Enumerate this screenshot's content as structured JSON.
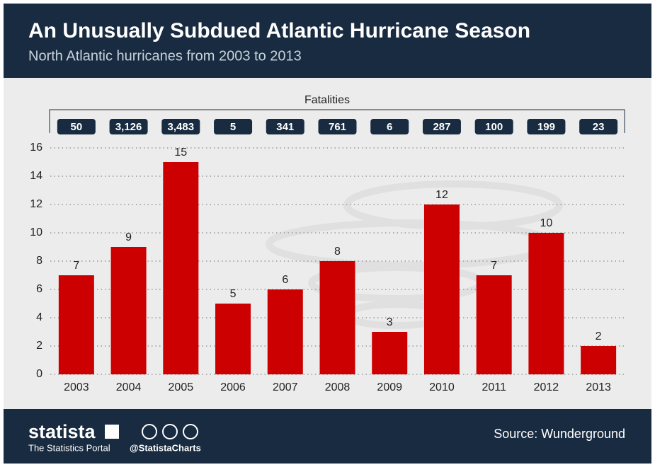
{
  "chart_data": {
    "type": "bar",
    "title": "An Unusually Subdued Atlantic Hurricane Season",
    "subtitle": "North Atlantic hurricanes from 2003 to 2013",
    "categories": [
      "2003",
      "2004",
      "2005",
      "2006",
      "2007",
      "2008",
      "2009",
      "2010",
      "2011",
      "2012",
      "2013"
    ],
    "values": [
      7,
      9,
      15,
      5,
      6,
      8,
      3,
      12,
      7,
      10,
      2
    ],
    "color": "#cc0000",
    "ylim": [
      0,
      16
    ],
    "yticks": [
      0,
      2,
      4,
      6,
      8,
      10,
      12,
      14,
      16
    ],
    "grid": true,
    "fatalities": {
      "title": "Fatalities",
      "values": [
        50,
        3126,
        3483,
        5,
        341,
        761,
        6,
        287,
        100,
        199,
        23
      ],
      "value_labels": [
        "50",
        "3,126",
        "3,483",
        "5",
        "341",
        "761",
        "6",
        "287",
        "100",
        "199",
        "23"
      ]
    }
  },
  "footer": {
    "brand": "statista",
    "tagline": "The Statistics Portal",
    "handle": "@StatistaCharts",
    "source": "Source: Wunderground"
  }
}
